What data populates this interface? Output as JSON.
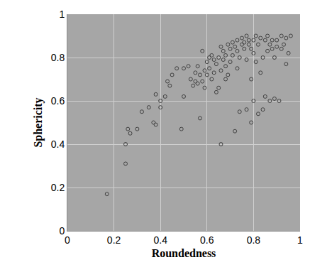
{
  "chart_data": {
    "type": "scatter",
    "x_label": "Roundedness",
    "y_label": "Sphericity",
    "x": [
      0.17,
      0.25,
      0.25,
      0.26,
      0.27,
      0.3,
      0.32,
      0.35,
      0.37,
      0.38,
      0.38,
      0.4,
      0.4,
      0.42,
      0.43,
      0.44,
      0.45,
      0.47,
      0.49,
      0.5,
      0.5,
      0.52,
      0.53,
      0.55,
      0.55,
      0.56,
      0.57,
      0.57,
      0.58,
      0.58,
      0.59,
      0.6,
      0.6,
      0.61,
      0.61,
      0.62,
      0.62,
      0.63,
      0.63,
      0.64,
      0.64,
      0.65,
      0.65,
      0.66,
      0.66,
      0.67,
      0.67,
      0.68,
      0.68,
      0.69,
      0.69,
      0.7,
      0.7,
      0.71,
      0.71,
      0.72,
      0.72,
      0.73,
      0.73,
      0.73,
      0.74,
      0.74,
      0.75,
      0.75,
      0.76,
      0.76,
      0.77,
      0.77,
      0.77,
      0.78,
      0.78,
      0.79,
      0.79,
      0.79,
      0.8,
      0.8,
      0.8,
      0.81,
      0.81,
      0.82,
      0.82,
      0.83,
      0.83,
      0.84,
      0.84,
      0.85,
      0.85,
      0.86,
      0.86,
      0.87,
      0.87,
      0.88,
      0.88,
      0.89,
      0.89,
      0.9,
      0.9,
      0.91,
      0.92,
      0.92,
      0.93,
      0.94,
      0.94,
      0.95,
      0.96,
      0.68,
      0.66,
      0.56,
      0.59,
      0.54
    ],
    "values": [
      0.17,
      0.31,
      0.4,
      0.47,
      0.45,
      0.47,
      0.55,
      0.57,
      0.5,
      0.49,
      0.63,
      0.57,
      0.6,
      0.62,
      0.69,
      0.67,
      0.72,
      0.75,
      0.47,
      0.62,
      0.75,
      0.76,
      0.7,
      0.73,
      0.69,
      0.76,
      0.52,
      0.72,
      0.69,
      0.83,
      0.66,
      0.72,
      0.78,
      0.8,
      0.75,
      0.81,
      0.7,
      0.79,
      0.73,
      0.64,
      0.77,
      0.66,
      0.8,
      0.4,
      0.74,
      0.79,
      0.83,
      0.76,
      0.81,
      0.72,
      0.86,
      0.84,
      0.78,
      0.81,
      0.87,
      0.85,
      0.46,
      0.88,
      0.83,
      0.75,
      0.55,
      0.8,
      0.89,
      0.86,
      0.84,
      0.87,
      0.9,
      0.79,
      0.56,
      0.86,
      0.88,
      0.84,
      0.7,
      0.5,
      0.88,
      0.82,
      0.6,
      0.9,
      0.78,
      0.86,
      0.54,
      0.89,
      0.73,
      0.8,
      0.56,
      0.88,
      0.62,
      0.9,
      0.83,
      0.86,
      0.6,
      0.84,
      0.88,
      0.61,
      0.8,
      0.88,
      0.85,
      0.6,
      0.84,
      0.9,
      0.86,
      0.89,
      0.77,
      0.82,
      0.9,
      0.7,
      0.85,
      0.68,
      0.74,
      0.67
    ],
    "color": "#404040",
    "marker": "circle-open",
    "xlim": [
      0,
      1
    ],
    "xticks": [
      0,
      0.2,
      0.4,
      0.6,
      0.8,
      1
    ],
    "ylim": [
      0,
      1
    ],
    "yticks": [
      0,
      0.2,
      0.4,
      0.6,
      0.8,
      1
    ],
    "grid": true
  }
}
